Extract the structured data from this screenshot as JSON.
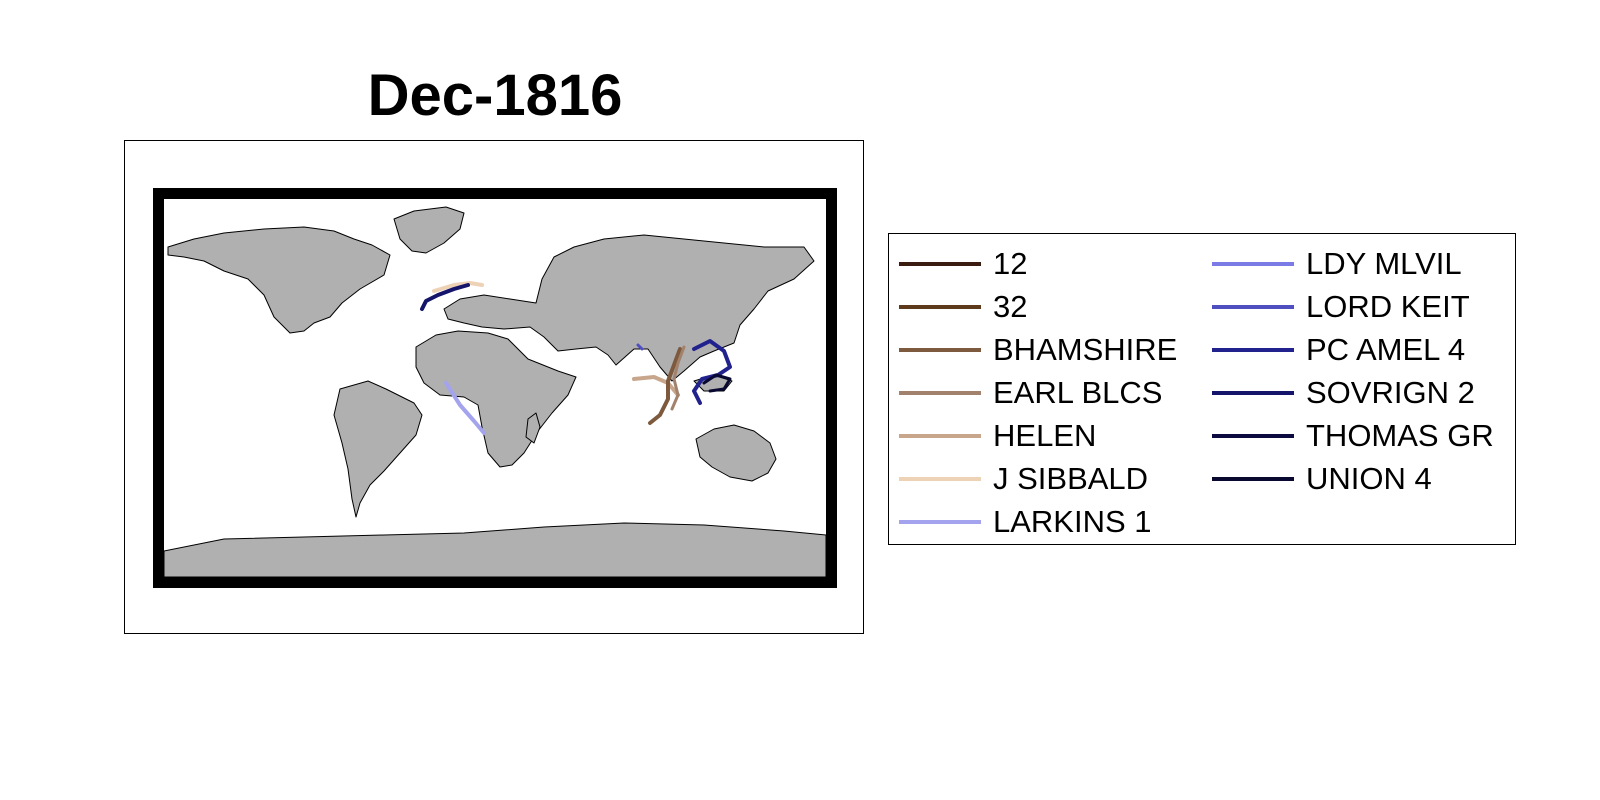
{
  "title": "Dec-1816",
  "map": {
    "land_color": "#b0b0b0",
    "coast_color": "#000000",
    "ocean_color": "#ffffff"
  },
  "legend": {
    "left": [
      {
        "label": "12",
        "color": "#3b1c10"
      },
      {
        "label": "32",
        "color": "#5e3a1c"
      },
      {
        "label": "BHAMSHIRE",
        "color": "#7d5a3e"
      },
      {
        "label": "EARL BLCS",
        "color": "#a2826c"
      },
      {
        "label": "HELEN",
        "color": "#c8a68c"
      },
      {
        "label": "J SIBBALD",
        "color": "#eed2b6"
      },
      {
        "label": "LARKINS 1",
        "color": "#a3a3ee"
      }
    ],
    "right": [
      {
        "label": "LDY MLVIL",
        "color": "#7b7be6"
      },
      {
        "label": "LORD KEIT",
        "color": "#4f4fc0"
      },
      {
        "label": "PC AMEL 4",
        "color": "#22228f"
      },
      {
        "label": "SOVRIGN 2",
        "color": "#14146a"
      },
      {
        "label": "THOMAS GR",
        "color": "#0b0b40"
      },
      {
        "label": "UNION 4",
        "color": "#080830"
      }
    ]
  }
}
